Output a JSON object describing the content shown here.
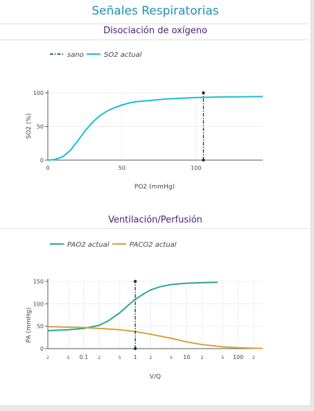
{
  "panel": {
    "title": "Señales Respiratorias"
  },
  "charts": [
    {
      "section_title": "Disociación de oxígeno",
      "legend": [
        "sano",
        "SO2 actual"
      ],
      "xlabel": "PO2 (mmHg)",
      "ylabel": "SO2 (%)",
      "xticks": [
        "0",
        "50",
        "100"
      ],
      "yticks": [
        "0",
        "50",
        "100"
      ]
    },
    {
      "section_title": "Ventilación/Perfusión",
      "legend": [
        "PAO2 actual",
        "PACO2 actual"
      ],
      "xlabel": "V/Q",
      "ylabel": "PA (mmHg)",
      "xticks": [
        "2",
        "5",
        "0.1",
        "2",
        "5",
        "1",
        "2",
        "5",
        "10",
        "2",
        "5",
        "100",
        "2"
      ],
      "yticks": [
        "0",
        "50",
        "100",
        "150"
      ]
    }
  ],
  "colors": {
    "cyan": "#17becf",
    "green": "#2ca58d",
    "orange": "#d4a03a",
    "dark": "#1b2d38"
  },
  "chart_data": [
    {
      "type": "line",
      "title": "Disociación de oxígeno",
      "xlabel": "PO2 (mmHg)",
      "ylabel": "SO2 (%)",
      "xlim": [
        0,
        145
      ],
      "ylim": [
        0,
        100
      ],
      "series": [
        {
          "name": "sano",
          "x": [
            105,
            105
          ],
          "y": [
            0,
            100
          ]
        },
        {
          "name": "SO2 actual",
          "x": [
            0,
            5,
            10,
            15,
            20,
            25,
            30,
            35,
            40,
            45,
            50,
            55,
            60,
            70,
            80,
            90,
            100,
            110,
            120,
            130,
            145
          ],
          "y": [
            0,
            1,
            5,
            14,
            28,
            43,
            56,
            66,
            73,
            78,
            82,
            85,
            87,
            89,
            91,
            92,
            93,
            93.5,
            94,
            94,
            94.5
          ]
        }
      ]
    },
    {
      "type": "line",
      "title": "Ventilación/Perfusión",
      "xlabel": "V/Q",
      "ylabel": "PA (mmHg)",
      "xscale": "log",
      "xlim": [
        0.02,
        300
      ],
      "ylim": [
        0,
        150
      ],
      "series": [
        {
          "name": "PAO2 actual",
          "x": [
            0.02,
            0.05,
            0.1,
            0.2,
            0.3,
            0.5,
            0.7,
            1,
            1.5,
            2,
            3,
            5,
            10,
            20,
            40
          ],
          "y": [
            40,
            42,
            45,
            52,
            62,
            80,
            95,
            110,
            123,
            131,
            138,
            143,
            146,
            147,
            148
          ]
        },
        {
          "name": "PACO2 actual",
          "x": [
            0.02,
            0.05,
            0.1,
            0.2,
            0.5,
            1,
            2,
            5,
            10,
            20,
            50,
            100,
            300
          ],
          "y": [
            49,
            48,
            47,
            45,
            42,
            38,
            32,
            23,
            15,
            9,
            4,
            2,
            0.5
          ]
        },
        {
          "name": "sano",
          "x": [
            1,
            1
          ],
          "y": [
            0,
            150
          ]
        }
      ]
    }
  ]
}
